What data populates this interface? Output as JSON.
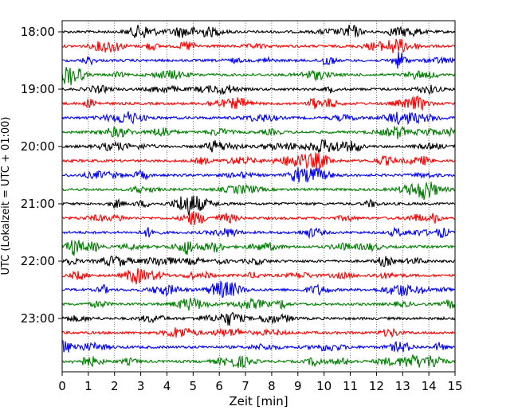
{
  "chart_data": {
    "type": "line",
    "xlabel": "Zeit  [min]",
    "ylabel": "UTC (Lokalzeit = UTC + 01:00)",
    "xlim": [
      0,
      15
    ],
    "x_ticks": [
      "0",
      "1",
      "2",
      "3",
      "4",
      "5",
      "6",
      "7",
      "8",
      "9",
      "10",
      "11",
      "12",
      "13",
      "14",
      "15"
    ],
    "y_ticks": [
      "18:00",
      "19:00",
      "20:00",
      "21:00",
      "22:00",
      "23:00"
    ],
    "grid": "vertical dotted lines at each minute",
    "trace_interval_minutes": 15,
    "trace_colors": [
      "#000000",
      "#ff0000",
      "#0000ff",
      "#008000"
    ],
    "traces": [
      {
        "start": "18:00",
        "color": "#000000"
      },
      {
        "start": "18:15",
        "color": "#ff0000"
      },
      {
        "start": "18:30",
        "color": "#0000ff"
      },
      {
        "start": "18:45",
        "color": "#008000"
      },
      {
        "start": "19:00",
        "color": "#000000"
      },
      {
        "start": "19:15",
        "color": "#ff0000"
      },
      {
        "start": "19:30",
        "color": "#0000ff"
      },
      {
        "start": "19:45",
        "color": "#008000"
      },
      {
        "start": "20:00",
        "color": "#000000"
      },
      {
        "start": "20:15",
        "color": "#ff0000"
      },
      {
        "start": "20:30",
        "color": "#0000ff"
      },
      {
        "start": "20:45",
        "color": "#008000"
      },
      {
        "start": "21:00",
        "color": "#000000"
      },
      {
        "start": "21:15",
        "color": "#ff0000"
      },
      {
        "start": "21:30",
        "color": "#0000ff"
      },
      {
        "start": "21:45",
        "color": "#008000"
      },
      {
        "start": "22:00",
        "color": "#000000"
      },
      {
        "start": "22:15",
        "color": "#ff0000"
      },
      {
        "start": "22:30",
        "color": "#0000ff"
      },
      {
        "start": "22:45",
        "color": "#008000"
      },
      {
        "start": "23:00",
        "color": "#000000"
      },
      {
        "start": "23:15",
        "color": "#ff0000"
      },
      {
        "start": "23:30",
        "color": "#0000ff"
      },
      {
        "start": "23:45",
        "color": "#008000"
      }
    ]
  }
}
